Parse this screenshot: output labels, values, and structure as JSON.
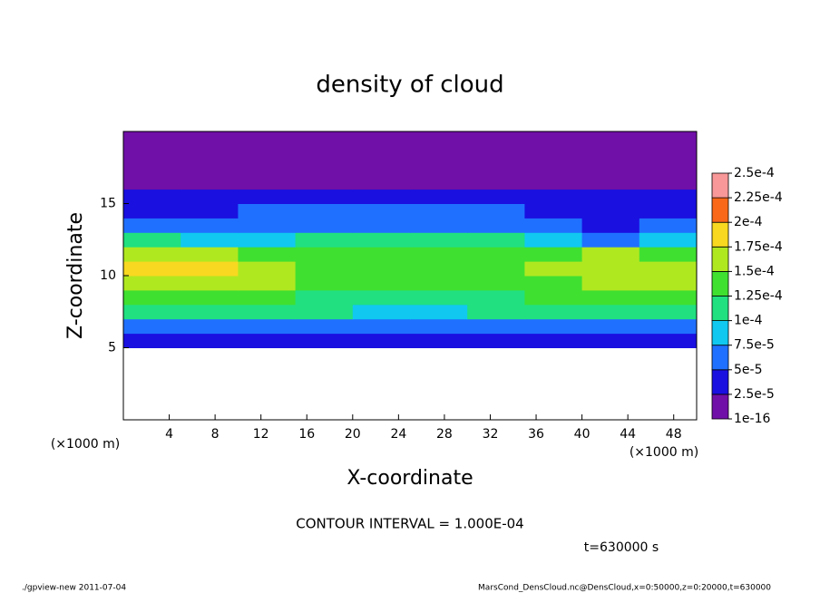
{
  "chart_data": {
    "type": "heatmap",
    "title": "density of cloud",
    "xlabel": "X-coordinate",
    "ylabel": "Z-coordinate",
    "x_unit": "(×1000 m)",
    "y_unit": "(×1000 m)",
    "annotation": "CONTOUR INTERVAL = 1.000E-04",
    "time_label": "t=630000 s",
    "footer_left": "./gpview-new  2011-07-04",
    "footer_right": "MarsCond_DensCloud.nc@DensCloud,x=0:50000,z=0:20000,t=630000",
    "xlim": [
      0,
      50
    ],
    "ylim": [
      0,
      20
    ],
    "xticks": [
      4,
      8,
      12,
      16,
      20,
      24,
      28,
      32,
      36,
      40,
      44,
      48
    ],
    "yticks": [
      5,
      10,
      15
    ],
    "xbins": [
      0,
      5,
      10,
      15,
      20,
      25,
      30,
      35,
      40,
      45,
      50
    ],
    "ybins": [
      4,
      5,
      6,
      7,
      8,
      9,
      10,
      11,
      12,
      13,
      14,
      15,
      16,
      17,
      18,
      19,
      20
    ],
    "z": [
      [
        null,
        null,
        null,
        null,
        null,
        null,
        null,
        null,
        null,
        null
      ],
      [
        3e-05,
        3e-05,
        3e-05,
        3e-05,
        3e-05,
        4e-05,
        3e-05,
        3e-05,
        3e-05,
        3e-05
      ],
      [
        7e-05,
        6e-05,
        6e-05,
        6e-05,
        6e-05,
        5e-05,
        6e-05,
        6e-05,
        6e-05,
        6e-05
      ],
      [
        0.00011,
        0.000105,
        0.000105,
        0.0001,
        8e-05,
        9e-05,
        0.0001,
        0.000105,
        0.000105,
        0.00011
      ],
      [
        0.00014,
        0.000135,
        0.00013,
        0.00012,
        0.000115,
        0.00012,
        0.00012,
        0.00013,
        0.000135,
        0.00014
      ],
      [
        0.00016,
        0.000165,
        0.00015,
        0.000135,
        0.00013,
        0.000135,
        0.000135,
        0.000145,
        0.000155,
        0.00016
      ],
      [
        0.000175,
        0.00018,
        0.00016,
        0.000145,
        0.00014,
        0.00014,
        0.000145,
        0.00015,
        0.00017,
        0.000165
      ],
      [
        0.00016,
        0.00016,
        0.000145,
        0.000135,
        0.000135,
        0.000135,
        0.000135,
        0.000135,
        0.00015,
        0.000145
      ],
      [
        0.0001,
        9e-05,
        9e-05,
        0.0001,
        0.000105,
        0.000105,
        0.000105,
        9e-05,
        7e-05,
        8e-05
      ],
      [
        6e-05,
        6e-05,
        7e-05,
        7e-05,
        7e-05,
        7e-05,
        7e-05,
        6e-05,
        4e-05,
        5e-05
      ],
      [
        4e-05,
        4e-05,
        5e-05,
        5e-05,
        5e-05,
        5e-05,
        5e-05,
        4e-05,
        3e-05,
        3.5e-05
      ],
      [
        3e-05,
        3e-05,
        3e-05,
        3e-05,
        3e-05,
        3e-05,
        3e-05,
        3e-05,
        2.6e-05,
        3e-05
      ],
      [
        1.5e-05,
        1.5e-05,
        1.5e-05,
        1.5e-05,
        1.5e-05,
        1.5e-05,
        1.5e-05,
        1.5e-05,
        1.5e-05,
        1.5e-05
      ],
      [
        5e-06,
        5e-06,
        5e-06,
        5e-06,
        5e-06,
        5e-06,
        5e-06,
        5e-06,
        5e-06,
        5e-06
      ],
      [
        5e-06,
        5e-06,
        5e-06,
        5e-06,
        5e-06,
        5e-06,
        5e-06,
        5e-06,
        5e-06,
        5e-06
      ],
      [
        5e-06,
        5e-06,
        5e-06,
        5e-06,
        5e-06,
        5e-06,
        5e-06,
        5e-06,
        5e-06,
        5e-06
      ]
    ],
    "levels": [
      {
        "value": 1e-16,
        "label": "1e-16"
      },
      {
        "value": 2.5e-05,
        "label": "2.5e-5"
      },
      {
        "value": 5e-05,
        "label": "5e-5"
      },
      {
        "value": 7.5e-05,
        "label": "7.5e-5"
      },
      {
        "value": 0.0001,
        "label": "1e-4"
      },
      {
        "value": 0.000125,
        "label": "1.25e-4"
      },
      {
        "value": 0.00015,
        "label": "1.5e-4"
      },
      {
        "value": 0.000175,
        "label": "1.75e-4"
      },
      {
        "value": 0.0002,
        "label": "2e-4"
      },
      {
        "value": 0.000225,
        "label": "2.25e-4"
      },
      {
        "value": 0.00025,
        "label": "2.5e-4"
      }
    ],
    "colors": [
      "#7010a8",
      "#1a10e0",
      "#2070ff",
      "#10c8f0",
      "#20e080",
      "#40e030",
      "#b0e820",
      "#f8d820",
      "#f86818",
      "#f89898"
    ]
  }
}
